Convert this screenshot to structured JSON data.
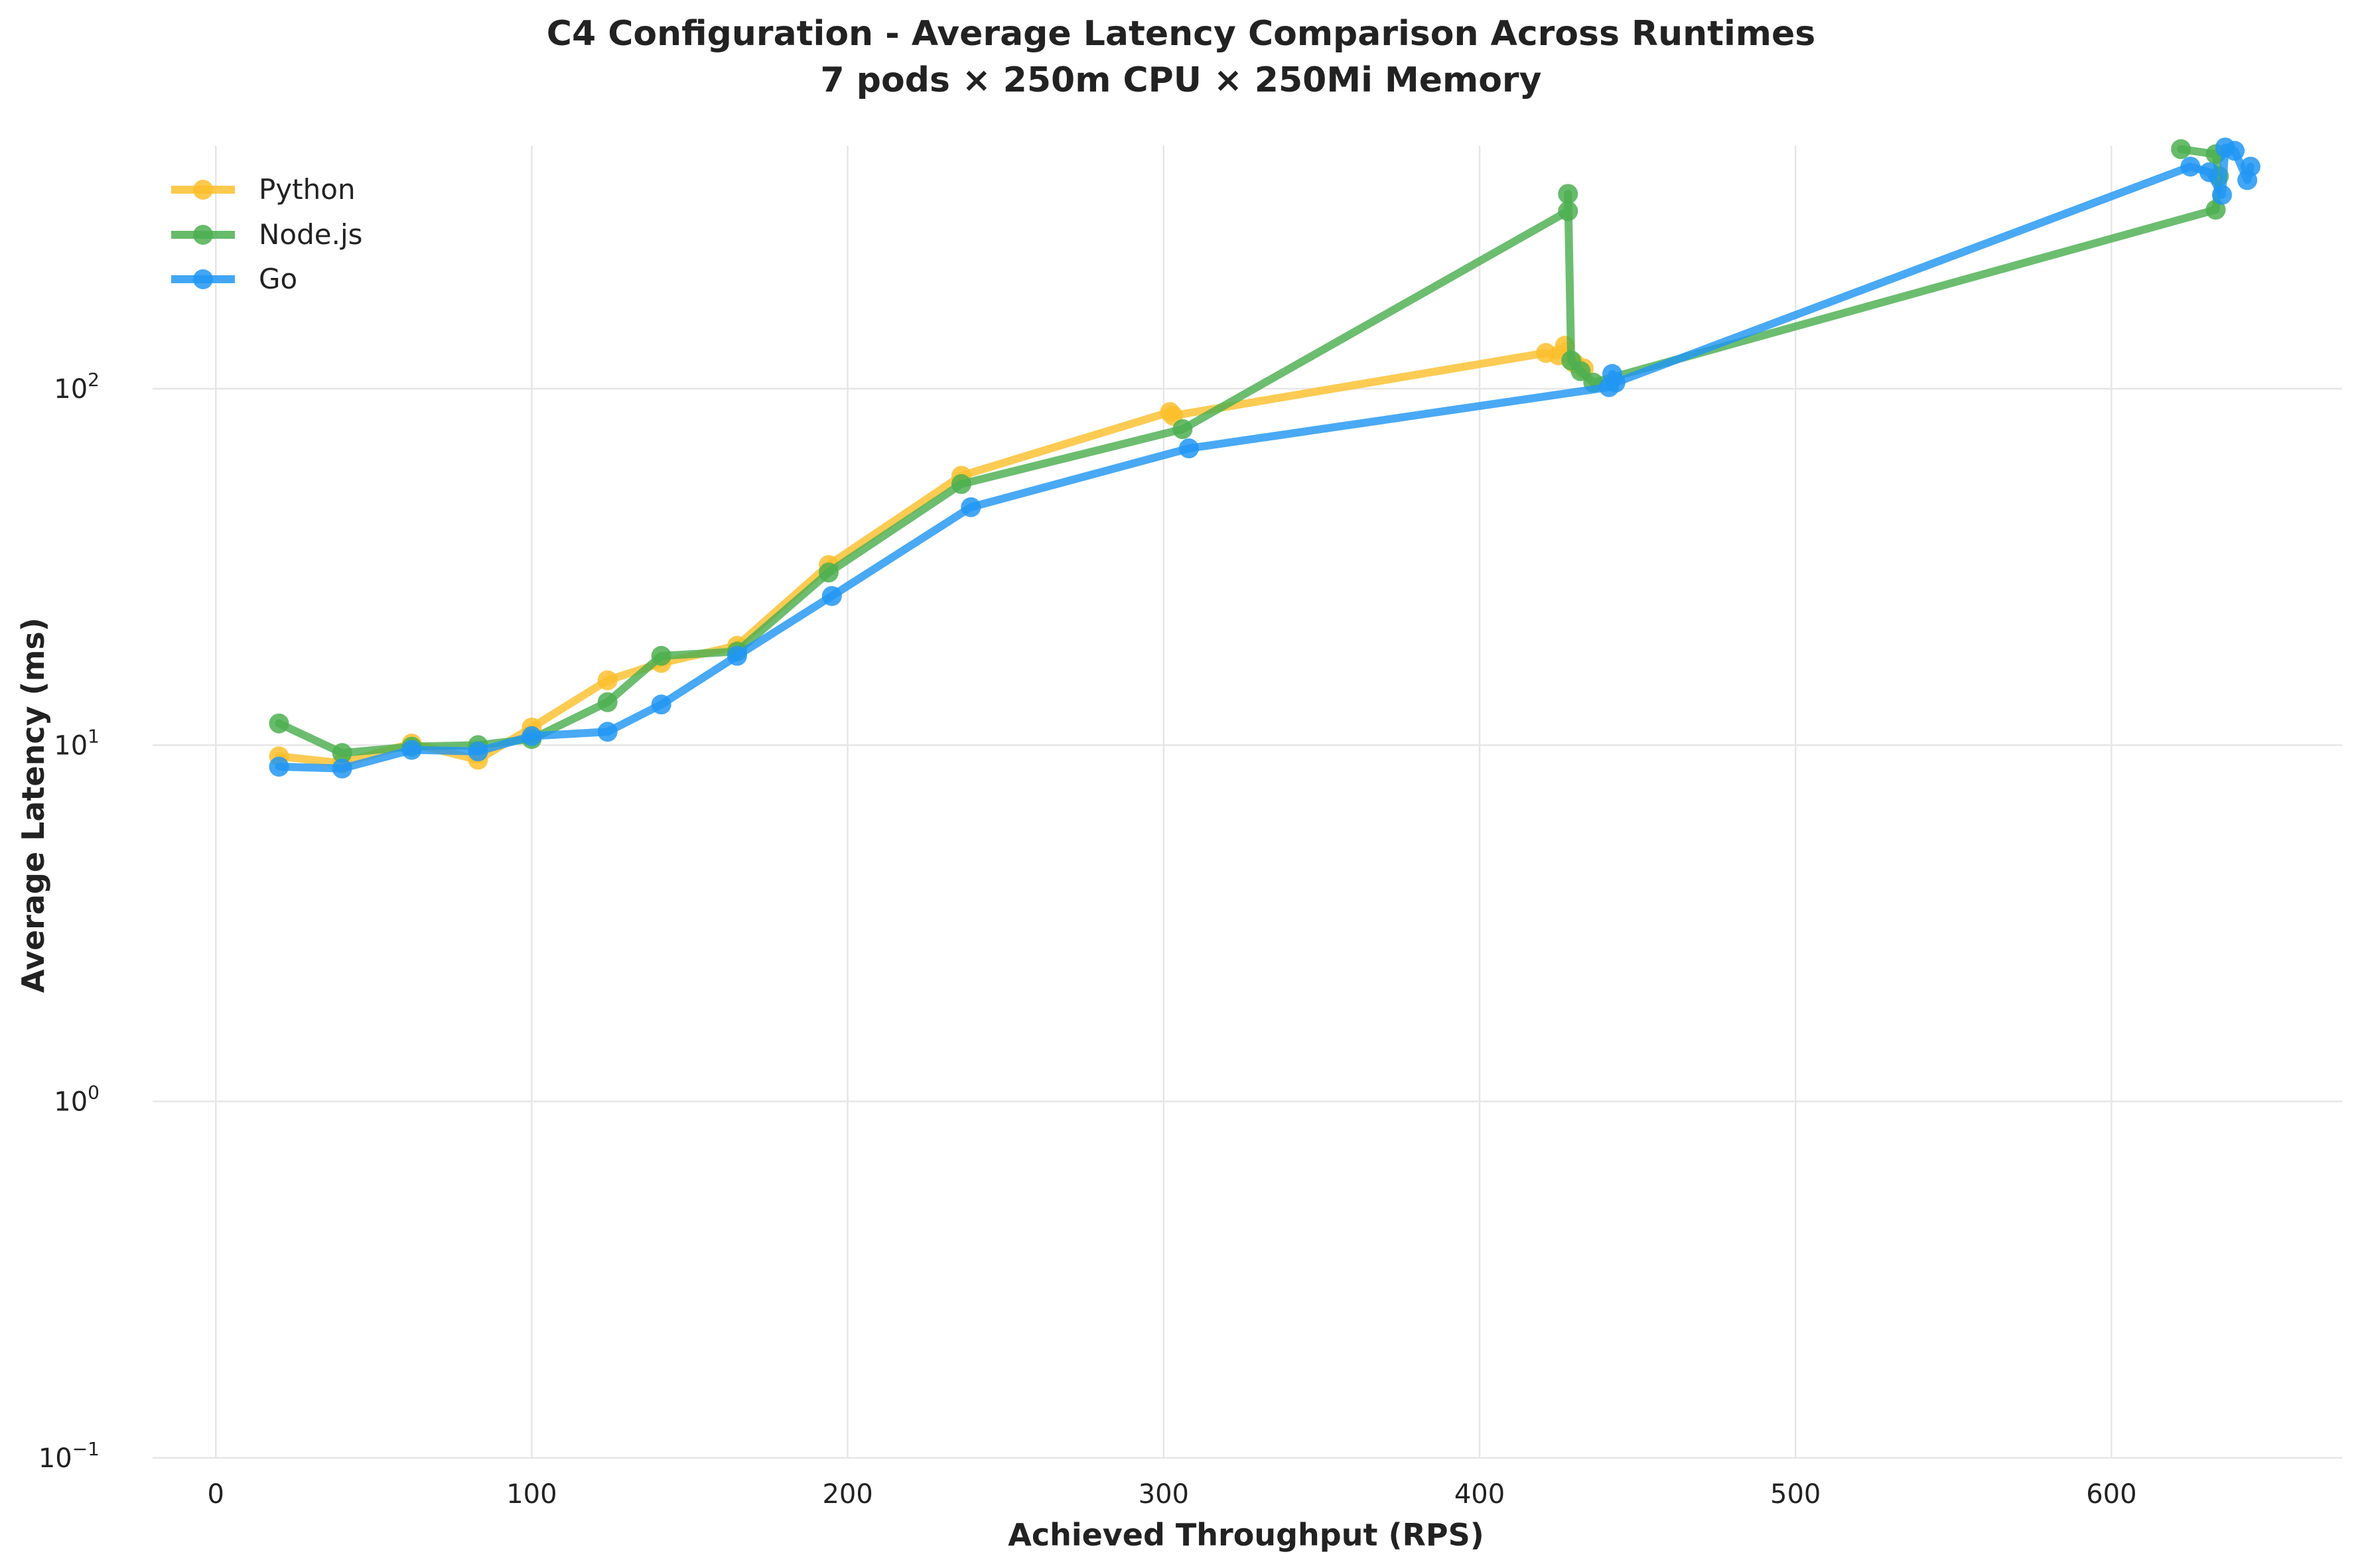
{
  "chart_data": {
    "type": "line",
    "title": "C4 Configuration - Average Latency Comparison Across Runtimes",
    "subtitle": "7 pods × 250m CPU × 250Mi Memory",
    "xlabel": "Achieved Throughput (RPS)",
    "ylabel": "Average Latency (ms)",
    "xlim": [
      -20,
      673
    ],
    "ylim": [
      0.1,
      480
    ],
    "yscale": "log",
    "grid": true,
    "legend_position": "top-left",
    "x_ticks": [
      {
        "value": 0,
        "label": "0"
      },
      {
        "value": 100,
        "label": "100"
      },
      {
        "value": 200,
        "label": "200"
      },
      {
        "value": 300,
        "label": "300"
      },
      {
        "value": 400,
        "label": "400"
      },
      {
        "value": 500,
        "label": "500"
      },
      {
        "value": 600,
        "label": "600"
      }
    ],
    "y_ticks": [
      {
        "value": 0.1,
        "base": "10",
        "exp": "−1"
      },
      {
        "value": 1,
        "base": "10",
        "exp": "0"
      },
      {
        "value": 10,
        "base": "10",
        "exp": "1"
      },
      {
        "value": 100,
        "base": "10",
        "exp": "2"
      }
    ],
    "series": [
      {
        "name": "Python",
        "color": "#FBC02D",
        "points": [
          [
            20,
            9.3
          ],
          [
            40,
            8.9
          ],
          [
            62,
            10.1
          ],
          [
            83,
            9.1
          ],
          [
            100,
            11.2
          ],
          [
            124,
            15.2
          ],
          [
            141,
            17.0
          ],
          [
            165,
            19.0
          ],
          [
            194,
            32.0
          ],
          [
            236,
            57.0
          ],
          [
            302,
            86.0
          ],
          [
            303,
            84.0
          ],
          [
            421,
            126.0
          ],
          [
            425,
            124.0
          ],
          [
            427,
            132.0
          ],
          [
            430,
            118.0
          ],
          [
            433,
            114.0
          ]
        ]
      },
      {
        "name": "Node.js",
        "color": "#4CAF50",
        "points": [
          [
            20,
            11.5
          ],
          [
            40,
            9.5
          ],
          [
            62,
            9.9
          ],
          [
            83,
            10.0
          ],
          [
            100,
            10.4
          ],
          [
            124,
            13.2
          ],
          [
            141,
            17.8
          ],
          [
            165,
            18.3
          ],
          [
            194,
            30.5
          ],
          [
            236,
            54.0
          ],
          [
            306,
            77.0
          ],
          [
            428,
            315.0
          ],
          [
            428,
            352.0
          ],
          [
            429,
            120.0
          ],
          [
            432,
            112.0
          ],
          [
            436,
            104.0
          ],
          [
            633,
            318.0
          ],
          [
            634,
            395.0
          ],
          [
            633,
            455.0
          ],
          [
            622,
            470.0
          ]
        ]
      },
      {
        "name": "Go",
        "color": "#2196F3",
        "points": [
          [
            20,
            8.7
          ],
          [
            40,
            8.6
          ],
          [
            62,
            9.7
          ],
          [
            83,
            9.6
          ],
          [
            100,
            10.6
          ],
          [
            124,
            10.9
          ],
          [
            141,
            13.0
          ],
          [
            165,
            17.8
          ],
          [
            195,
            26.2
          ],
          [
            239,
            46.5
          ],
          [
            308,
            68.0
          ],
          [
            441,
            101.0
          ],
          [
            442,
            110.0
          ],
          [
            443,
            104.0
          ],
          [
            625,
            420.0
          ],
          [
            631,
            405.0
          ],
          [
            635,
            350.0
          ],
          [
            636,
            475.0
          ],
          [
            639,
            465.0
          ],
          [
            643,
            385.0
          ],
          [
            644,
            420.0
          ]
        ]
      }
    ]
  }
}
